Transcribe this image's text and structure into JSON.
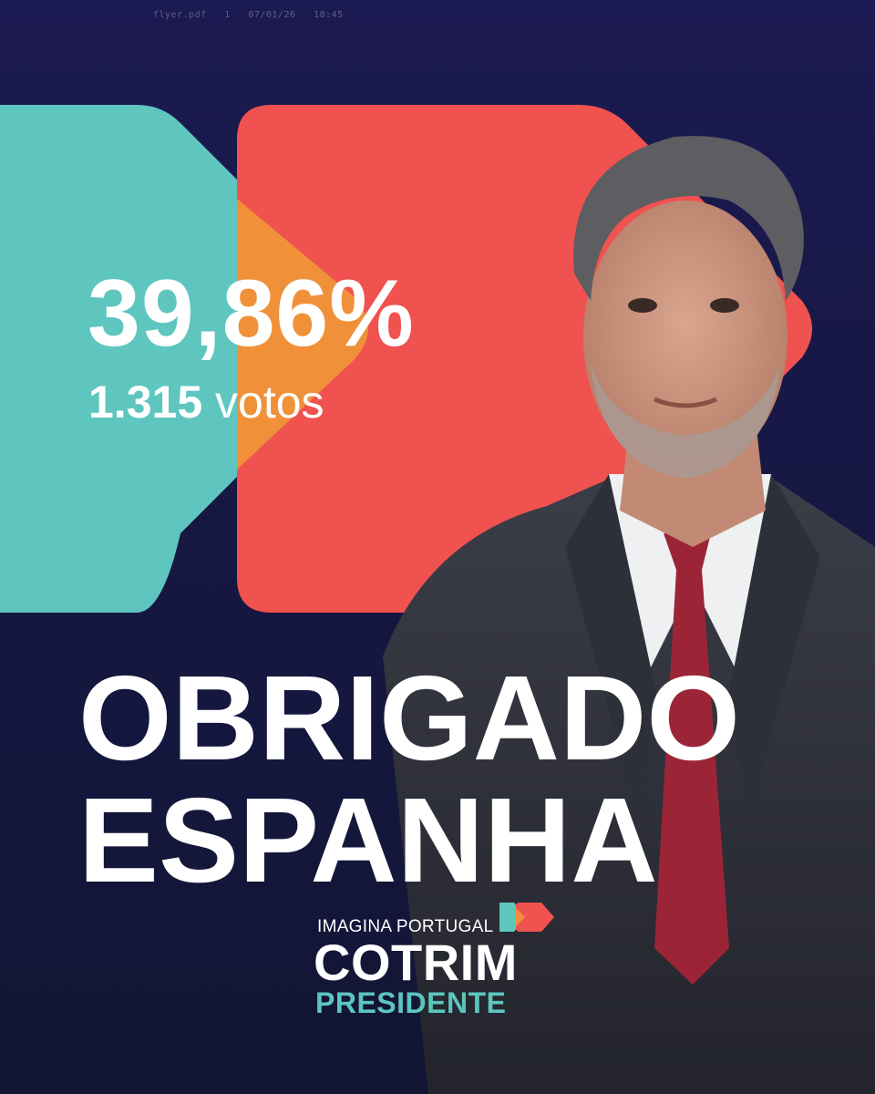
{
  "header": {
    "stamp": "flyer.pdf   1   07/01/26   18:45"
  },
  "result": {
    "percent": "39,86%",
    "votes_count": "1.315",
    "votes_label": "votos"
  },
  "headline": {
    "line1": "OBRIGADO",
    "line2": "ESPANHA"
  },
  "logo": {
    "tagline": "IMAGINA PORTUGAL",
    "name": "COTRIM",
    "title": "PRESIDENTE"
  },
  "colors": {
    "background": "#1b1a4e",
    "teal": "#5ec6bf",
    "red": "#ef524f",
    "orange": "#f0913a",
    "text": "#ffffff"
  },
  "icons": {
    "photo": "candidate-portrait-icon",
    "logo_mark": "double-arrow-logo-icon"
  }
}
